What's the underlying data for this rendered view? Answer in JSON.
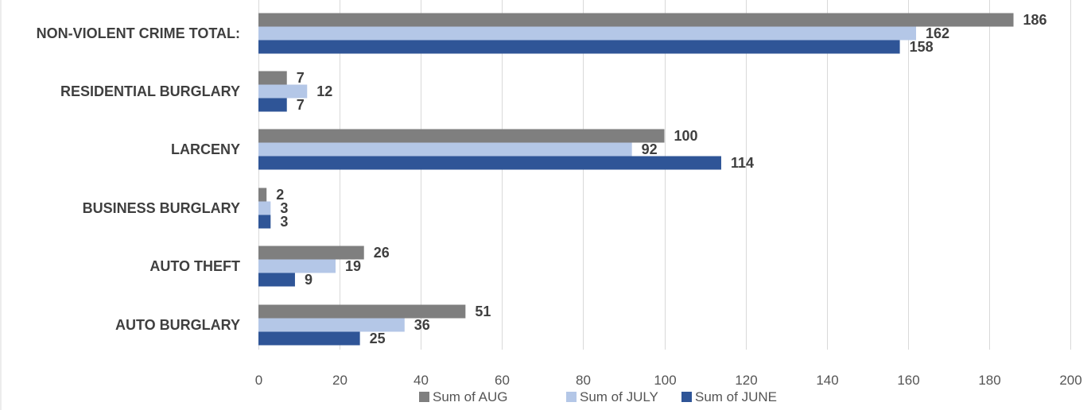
{
  "chart_data": {
    "type": "bar",
    "orientation": "horizontal",
    "title": "",
    "xlabel": "",
    "ylabel": "",
    "categories": [
      "NON-VIOLENT CRIME TOTAL:",
      "RESIDENTIAL BURGLARY",
      "LARCENY",
      "BUSINESS BURGLARY",
      "AUTO THEFT",
      "AUTO BURGLARY"
    ],
    "series": [
      {
        "name": "Sum of AUG",
        "color": "#7f7f7f",
        "values": [
          186,
          7,
          100,
          2,
          26,
          51
        ]
      },
      {
        "name": "Sum of JULY",
        "color": "#b4c7e7",
        "values": [
          162,
          12,
          92,
          3,
          19,
          36
        ]
      },
      {
        "name": "Sum of JUNE",
        "color": "#2f5597",
        "values": [
          158,
          7,
          114,
          3,
          9,
          25
        ]
      }
    ],
    "xlim": [
      0,
      200
    ],
    "ticks": [
      0,
      20,
      40,
      60,
      80,
      100,
      120,
      140,
      160,
      180,
      200
    ],
    "tick_labels": [
      "0",
      "20",
      "40",
      "60",
      "80",
      "100",
      "120",
      "140",
      "160",
      "180",
      "200"
    ],
    "grid": true,
    "legend_position": "bottom",
    "data_labels": true
  }
}
